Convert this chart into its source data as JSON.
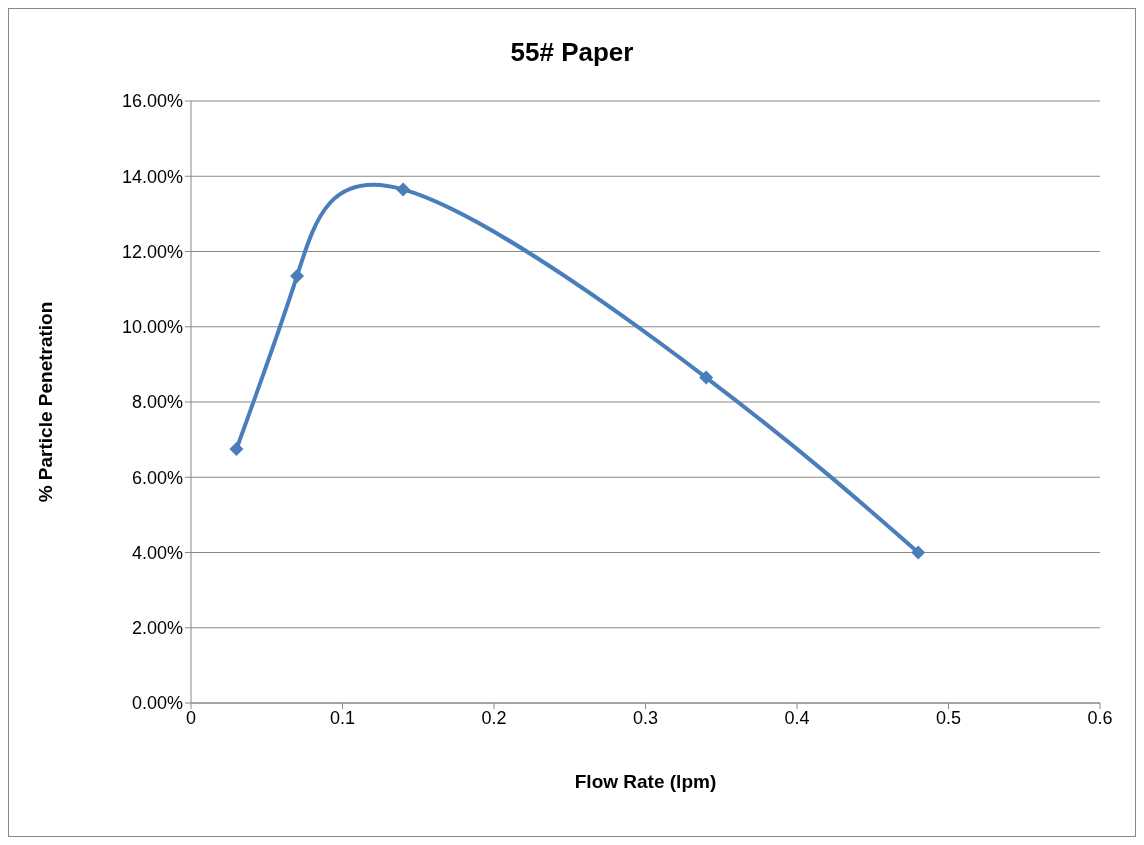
{
  "chart_data": {
    "type": "line",
    "title": "55# Paper",
    "xlabel": "Flow Rate (lpm)",
    "ylabel": "% Particle Penetration",
    "x": [
      0.03,
      0.07,
      0.14,
      0.34,
      0.48
    ],
    "series": [
      {
        "color": "#4a7ebb",
        "values": [
          6.75,
          11.35,
          13.65,
          8.65,
          4.0
        ]
      }
    ],
    "xlim": [
      0,
      0.6
    ],
    "xticks": [
      0,
      0.1,
      0.2,
      0.3,
      0.4,
      0.5,
      0.6
    ],
    "ylim": [
      0,
      16
    ],
    "yticks": [
      {
        "value": 0,
        "label": "0.00%"
      },
      {
        "value": 2,
        "label": "2.00%"
      },
      {
        "value": 4,
        "label": "4.00%"
      },
      {
        "value": 6,
        "label": "6.00%"
      },
      {
        "value": 8,
        "label": "8.00%"
      },
      {
        "value": 10,
        "label": "10.00%"
      },
      {
        "value": 12,
        "label": "12.00%"
      },
      {
        "value": 14,
        "label": "14.00%"
      },
      {
        "value": 16,
        "label": "16.00%"
      }
    ],
    "grid": "y",
    "marker": "diamond",
    "line_style": "solid"
  }
}
